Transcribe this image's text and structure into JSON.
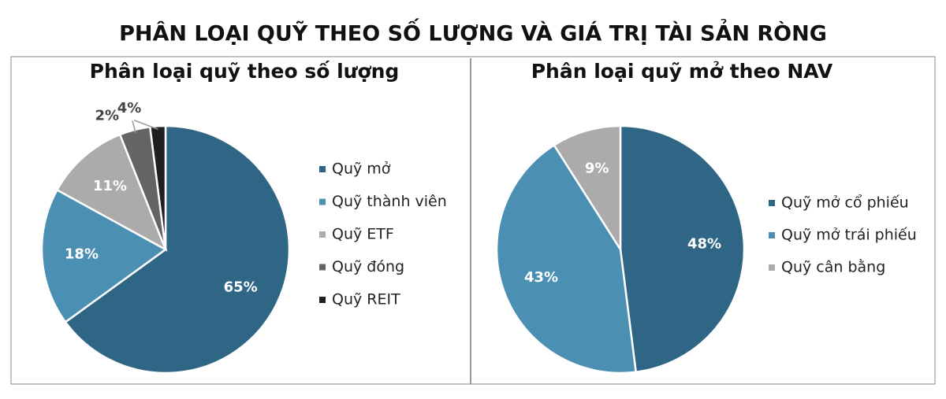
{
  "title": "PHÂN LOẠI QUỸ THEO SỐ LƯỢNG VÀ GIÁ TRỊ TÀI SẢN RÒNG",
  "chart_data": [
    {
      "type": "pie",
      "title": "Phân loại quỹ theo số lượng",
      "categories": [
        "Quỹ mở",
        "Quỹ thành viên",
        "Quỹ ETF",
        "Quỹ đóng",
        "Quỹ REIT"
      ],
      "values": [
        65,
        18,
        11,
        4,
        2
      ],
      "value_labels": [
        "65%",
        "18%",
        "11%",
        "4%",
        "2%"
      ],
      "colors": [
        "#2f6585",
        "#4b8fb3",
        "#ababab",
        "#646464",
        "#202020"
      ]
    },
    {
      "type": "pie",
      "title": "Phân loại quỹ mở theo NAV",
      "categories": [
        "Quỹ mở cổ phiếu",
        "Quỹ mở trái phiếu",
        "Quỹ cân bằng"
      ],
      "values": [
        48,
        43,
        9
      ],
      "value_labels": [
        "48%",
        "43%",
        "9%"
      ],
      "colors": [
        "#2f6585",
        "#4b8fb3",
        "#ababab"
      ]
    }
  ]
}
